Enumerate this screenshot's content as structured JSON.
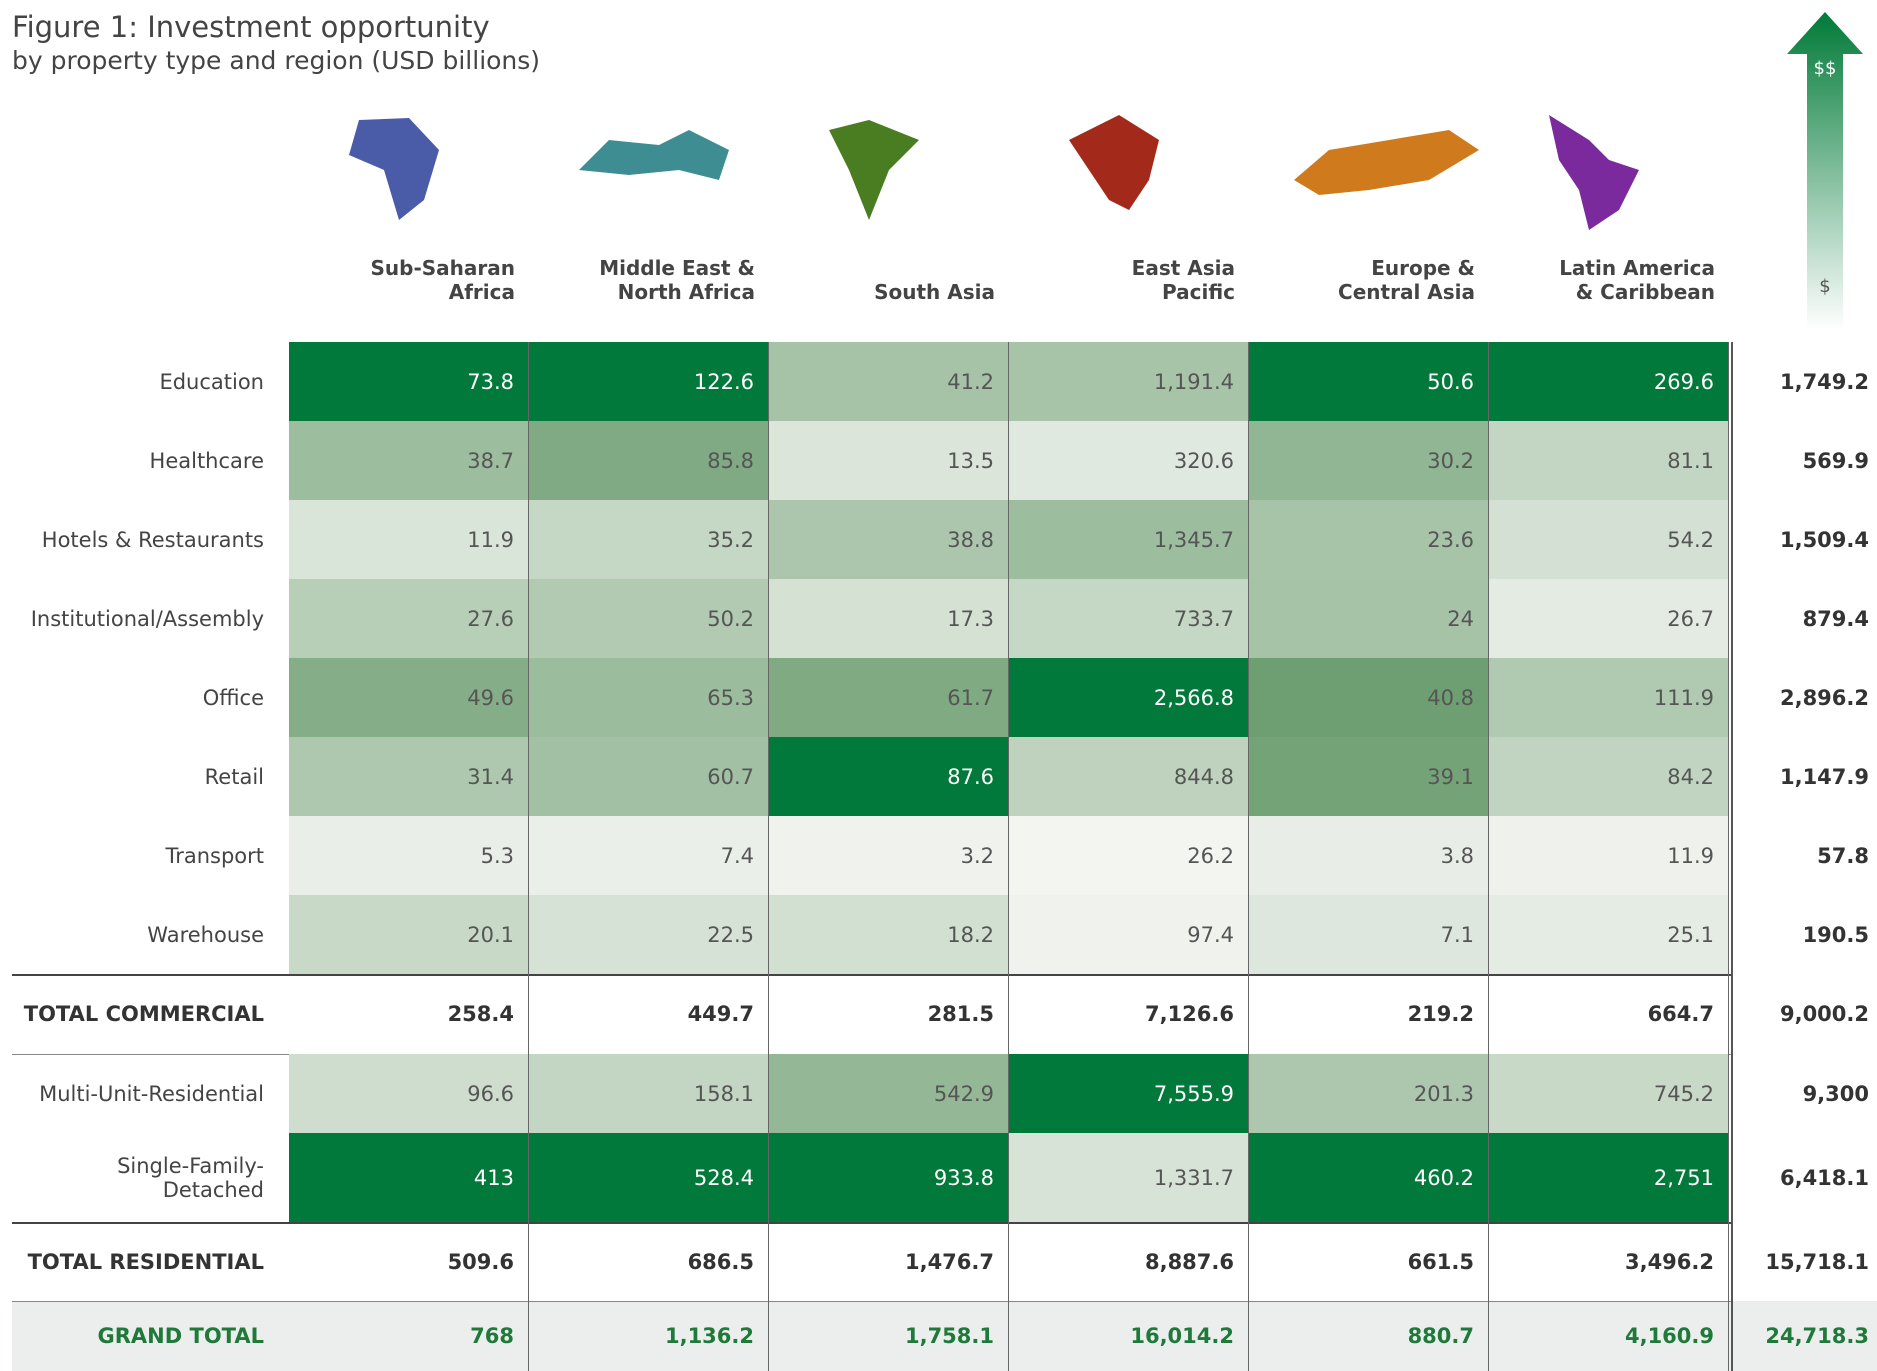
{
  "title": "Figure 1: Investment opportunity",
  "subtitle": "by property type and region (USD billions)",
  "arrow_labels": [
    "$$",
    "$"
  ],
  "regions": [
    {
      "name": "Sub-Saharan\nAfrica",
      "color": "#4a5ba8"
    },
    {
      "name": "Middle East &\nNorth Africa",
      "color": "#3d8d93"
    },
    {
      "name": "South Asia",
      "color": "#4a7d22"
    },
    {
      "name": "East Asia\nPacific",
      "color": "#a32a1a"
    },
    {
      "name": "Europe &\nCentral Asia",
      "color": "#d07a1e"
    },
    {
      "name": "Latin America\n& Caribbean",
      "color": "#7a2a9c"
    }
  ],
  "commercial": [
    {
      "label": "Education",
      "values": [
        "73.8",
        "122.6",
        "41.2",
        "1,191.4",
        "50.6",
        "269.6"
      ],
      "total": "1,749.2"
    },
    {
      "label": "Healthcare",
      "values": [
        "38.7",
        "85.8",
        "13.5",
        "320.6",
        "30.2",
        "81.1"
      ],
      "total": "569.9"
    },
    {
      "label": "Hotels & Restaurants",
      "values": [
        "11.9",
        "35.2",
        "38.8",
        "1,345.7",
        "23.6",
        "54.2"
      ],
      "total": "1,509.4"
    },
    {
      "label": "Institutional/Assembly",
      "values": [
        "27.6",
        "50.2",
        "17.3",
        "733.7",
        "24",
        "26.7"
      ],
      "total": "879.4"
    },
    {
      "label": "Office",
      "values": [
        "49.6",
        "65.3",
        "61.7",
        "2,566.8",
        "40.8",
        "111.9"
      ],
      "total": "2,896.2"
    },
    {
      "label": "Retail",
      "values": [
        "31.4",
        "60.7",
        "87.6",
        "844.8",
        "39.1",
        "84.2"
      ],
      "total": "1,147.9"
    },
    {
      "label": "Transport",
      "values": [
        "5.3",
        "7.4",
        "3.2",
        "26.2",
        "3.8",
        "11.9"
      ],
      "total": "57.8"
    },
    {
      "label": "Warehouse",
      "values": [
        "20.1",
        "22.5",
        "18.2",
        "97.4",
        "7.1",
        "25.1"
      ],
      "total": "190.5"
    }
  ],
  "total_commercial": {
    "label": "TOTAL COMMERCIAL",
    "values": [
      "258.4",
      "449.7",
      "281.5",
      "7,126.6",
      "219.2",
      "664.7"
    ],
    "total": "9,000.2"
  },
  "residential": [
    {
      "label": "Multi-Unit-Residential",
      "values": [
        "96.6",
        "158.1",
        "542.9",
        "7,555.9",
        "201.3",
        "745.2"
      ],
      "total": "9,300"
    },
    {
      "label": "Single-Family-\nDetached",
      "values": [
        "413",
        "528.4",
        "933.8",
        "1,331.7",
        "460.2",
        "2,751"
      ],
      "total": "6,418.1"
    }
  ],
  "total_residential": {
    "label": "TOTAL RESIDENTIAL",
    "values": [
      "509.6",
      "686.5",
      "1,476.7",
      "8,887.6",
      "661.5",
      "3,496.2"
    ],
    "total": "15,718.1"
  },
  "grand_total": {
    "label": "GRAND TOTAL",
    "values": [
      "768",
      "1,136.2",
      "1,758.1",
      "16,014.2",
      "880.7",
      "4,160.9"
    ],
    "total": "24,718.3"
  }
}
